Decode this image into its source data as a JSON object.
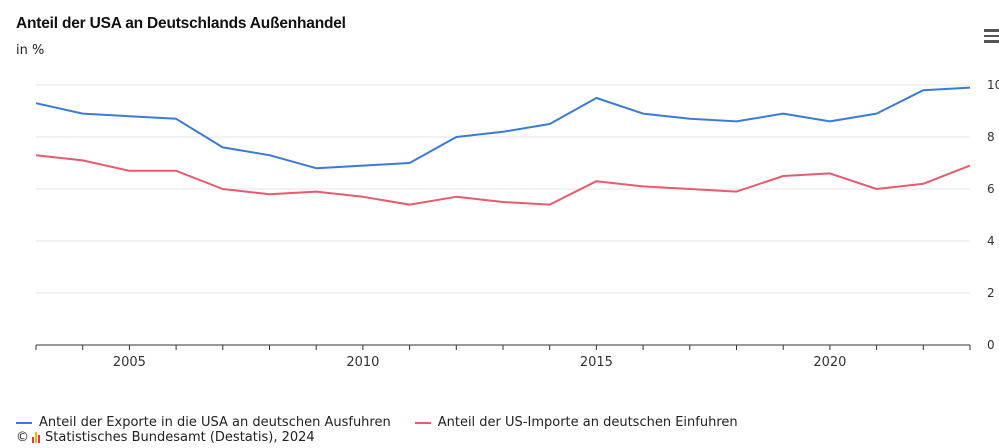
{
  "header": {
    "title": "Anteil der USA an Deutschlands Außenhandel",
    "subtitle": "in %"
  },
  "menu": {
    "icon": "hamburger-menu-icon"
  },
  "legend": [
    {
      "label": "Anteil der Exporte in die USA an deutschen Ausfuhren",
      "color": "#3a7bd5"
    },
    {
      "label": "Anteil der US-Importe an deutschen Einfuhren",
      "color": "#e65b6e"
    }
  ],
  "footer": {
    "copyright": "©",
    "source": "Statistisches Bundesamt (Destatis), 2024",
    "logo_colors": [
      "#e8333a",
      "#f4b400",
      "#e8333a"
    ]
  },
  "chart_data": {
    "type": "line",
    "x": [
      2003,
      2004,
      2005,
      2006,
      2007,
      2008,
      2009,
      2010,
      2011,
      2012,
      2013,
      2014,
      2015,
      2016,
      2017,
      2018,
      2019,
      2020,
      2021,
      2022,
      2023
    ],
    "series": [
      {
        "name": "Anteil der Exporte in die USA an deutschen Ausfuhren",
        "color": "#3a7bd5",
        "values": [
          9.3,
          8.9,
          8.8,
          8.7,
          7.6,
          7.3,
          6.8,
          6.9,
          7.0,
          8.0,
          8.2,
          8.5,
          9.5,
          8.9,
          8.7,
          8.6,
          8.9,
          8.6,
          8.9,
          9.8,
          9.9
        ]
      },
      {
        "name": "Anteil der US-Importe an deutschen Einfuhren",
        "color": "#e65b6e",
        "values": [
          7.3,
          7.1,
          6.7,
          6.7,
          6.0,
          5.8,
          5.9,
          5.7,
          5.4,
          5.7,
          5.5,
          5.4,
          6.3,
          6.1,
          6.0,
          5.9,
          6.5,
          6.6,
          6.0,
          6.2,
          6.9
        ]
      }
    ],
    "x_ticks": [
      2005,
      2010,
      2015,
      2020
    ],
    "y_ticks": [
      "0",
      "2",
      "4",
      "6",
      "8",
      "10"
    ],
    "ylim": [
      0,
      10
    ],
    "xlim": [
      2003,
      2023
    ],
    "grid": "horizontal",
    "legend_position": "bottom-left",
    "y_axis_side": "right"
  }
}
